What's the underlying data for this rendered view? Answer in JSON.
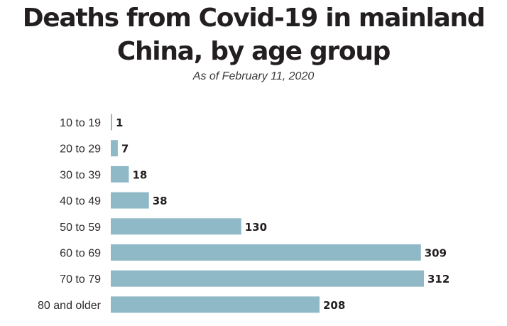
{
  "chart_data": {
    "type": "bar",
    "orientation": "horizontal",
    "title": "Deaths from Covid-19 in mainland China, by age group",
    "subtitle": "As of February 11, 2020",
    "categories": [
      "10 to 19",
      "20 to 29",
      "30 to 39",
      "40 to 49",
      "50 to 59",
      "60 to 69",
      "70 to 79",
      "80 and older"
    ],
    "values": [
      1,
      7,
      18,
      38,
      130,
      309,
      312,
      208
    ],
    "data_labels": [
      "1",
      "7",
      "18",
      "38",
      "130",
      "309",
      "312",
      "208"
    ],
    "xlim": [
      0,
      312
    ],
    "grid": false,
    "legend": "none",
    "bar_color": "#90b9c8"
  }
}
